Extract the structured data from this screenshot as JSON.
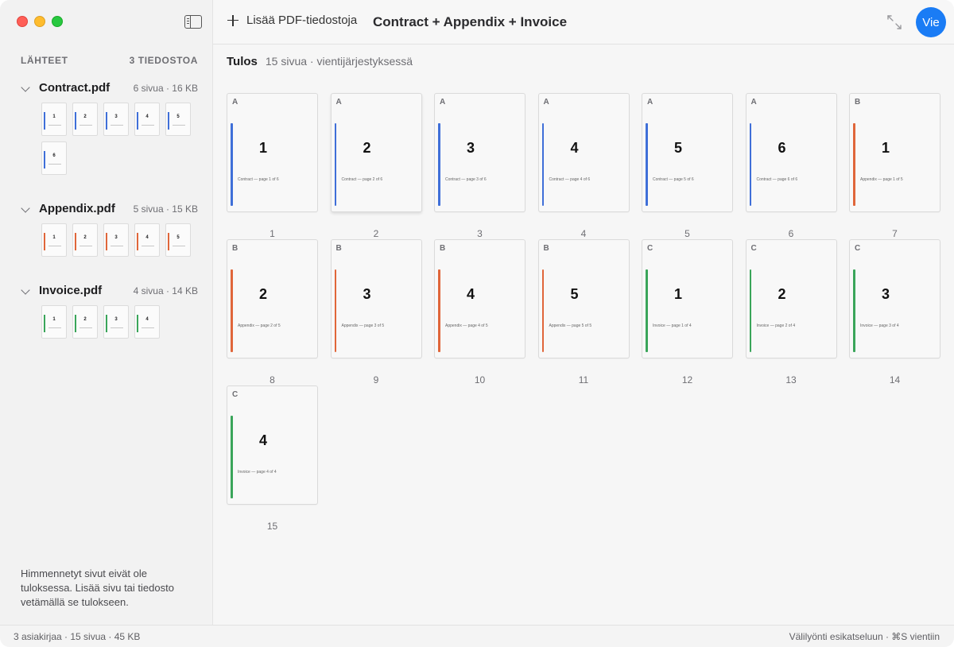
{
  "colors": {
    "A": "#3f6fd8",
    "B": "#e0663a",
    "C": "#3aa55a",
    "accent": "#1a7cf5"
  },
  "window": {
    "controls": [
      "close",
      "minimize",
      "zoom"
    ]
  },
  "sidebar": {
    "toggle_icon": "sidebar-toggle-icon",
    "sources_label": "LÄHTEET",
    "files_count": "3 TIEDOSTOA",
    "files": [
      {
        "name": "Contract.pdf",
        "meta": "6 sivua · 16 KB",
        "source": "A",
        "pages": [
          "1",
          "2",
          "3",
          "4",
          "5",
          "6"
        ]
      },
      {
        "name": "Appendix.pdf",
        "meta": "5 sivua · 15 KB",
        "source": "B",
        "pages": [
          "1",
          "2",
          "3",
          "4",
          "5"
        ]
      },
      {
        "name": "Invoice.pdf",
        "meta": "4 sivua · 14 KB",
        "source": "C",
        "pages": [
          "1",
          "2",
          "3",
          "4"
        ]
      }
    ],
    "footer_hint": "Himmennetyt sivut eivät ole tuloksessa. Lisää sivu tai tiedosto vetämällä se tulokseen."
  },
  "toolbar": {
    "add_label": "Lisää PDF-tiedostoja",
    "title": "Contract + Appendix + Invoice",
    "expand_icon": "expand-arrows-icon",
    "export_label": "Vie"
  },
  "result": {
    "title": "Tulos",
    "meta": "15 sivua · vientijärjestyksessä",
    "pages": [
      {
        "src": "A",
        "num": "1",
        "caption": "Contract — page 1 of 6",
        "pos": "1"
      },
      {
        "src": "A",
        "num": "2",
        "caption": "Contract — page 2 of 6",
        "pos": "2"
      },
      {
        "src": "A",
        "num": "3",
        "caption": "Contract — page 3 of 6",
        "pos": "3"
      },
      {
        "src": "A",
        "num": "4",
        "caption": "Contract — page 4 of 6",
        "pos": "4"
      },
      {
        "src": "A",
        "num": "5",
        "caption": "Contract — page 5 of 6",
        "pos": "5"
      },
      {
        "src": "A",
        "num": "6",
        "caption": "Contract — page 6 of 6",
        "pos": "6"
      },
      {
        "src": "B",
        "num": "1",
        "caption": "Appendix — page 1 of 5",
        "pos": "7"
      },
      {
        "src": "B",
        "num": "2",
        "caption": "Appendix — page 2 of 5",
        "pos": "8"
      },
      {
        "src": "B",
        "num": "3",
        "caption": "Appendix — page 3 of 5",
        "pos": "9"
      },
      {
        "src": "B",
        "num": "4",
        "caption": "Appendix — page 4 of 5",
        "pos": "10"
      },
      {
        "src": "B",
        "num": "5",
        "caption": "Appendix — page 5 of 5",
        "pos": "11"
      },
      {
        "src": "C",
        "num": "1",
        "caption": "Invoice — page 1 of 4",
        "pos": "12"
      },
      {
        "src": "C",
        "num": "2",
        "caption": "Invoice — page 2 of 4",
        "pos": "13"
      },
      {
        "src": "C",
        "num": "3",
        "caption": "Invoice — page 3 of 4",
        "pos": "14"
      },
      {
        "src": "C",
        "num": "4",
        "caption": "Invoice — page 4 of 4",
        "pos": "15"
      }
    ]
  },
  "status": {
    "left": "3 asiakirjaa · 15 sivua · 45 KB",
    "right": "Välilyönti esikatseluun · ⌘S vientiin"
  }
}
